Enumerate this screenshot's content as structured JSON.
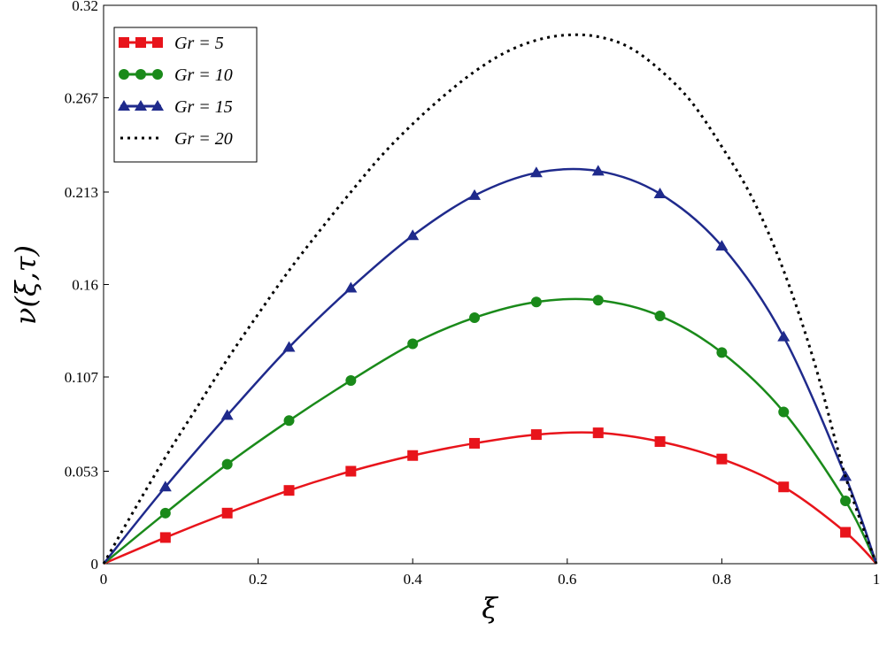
{
  "chart_data": {
    "type": "line",
    "xlabel": "ξ",
    "ylabel": "ν(ξ,τ)",
    "xlim": [
      0,
      1
    ],
    "ylim": [
      0,
      0.32
    ],
    "x_ticks": [
      "0",
      "0.2",
      "0.4",
      "0.6",
      "0.8",
      "1"
    ],
    "x_tick_values": [
      0,
      0.2,
      0.4,
      0.6,
      0.8,
      1
    ],
    "y_ticks": [
      "0",
      "0.053",
      "0.107",
      "0.16",
      "0.213",
      "0.267",
      "0.32"
    ],
    "y_tick_values": [
      0,
      0.053,
      0.107,
      0.16,
      0.213,
      0.267,
      0.32
    ],
    "legend_position": "top-left",
    "grid": false,
    "x": [
      0,
      0.08,
      0.16,
      0.24,
      0.32,
      0.4,
      0.48,
      0.56,
      0.64,
      0.72,
      0.8,
      0.88,
      0.96,
      1.0
    ],
    "series": [
      {
        "name": "Gr = 5",
        "label": "Gr = 5",
        "color": "#e8141b",
        "marker": "square",
        "dash": false,
        "values": [
          0,
          0.015,
          0.029,
          0.042,
          0.053,
          0.062,
          0.069,
          0.074,
          0.075,
          0.07,
          0.06,
          0.044,
          0.018,
          0
        ]
      },
      {
        "name": "Gr = 10",
        "label": "Gr = 10",
        "color": "#1a8a1a",
        "marker": "circle",
        "dash": false,
        "values": [
          0,
          0.029,
          0.057,
          0.082,
          0.105,
          0.126,
          0.141,
          0.15,
          0.151,
          0.142,
          0.121,
          0.087,
          0.036,
          0
        ]
      },
      {
        "name": "Gr = 15",
        "label": "Gr = 15",
        "color": "#1f2a8c",
        "marker": "triangle",
        "dash": false,
        "values": [
          0,
          0.044,
          0.085,
          0.124,
          0.158,
          0.188,
          0.211,
          0.224,
          0.225,
          0.212,
          0.182,
          0.13,
          0.05,
          0
        ]
      },
      {
        "name": "Gr = 20",
        "label": "Gr = 20",
        "color": "#000000",
        "marker": "none",
        "dash": true,
        "x": [
          0,
          0.04,
          0.08,
          0.12,
          0.16,
          0.2,
          0.24,
          0.28,
          0.32,
          0.36,
          0.4,
          0.44,
          0.48,
          0.52,
          0.56,
          0.6,
          0.64,
          0.68,
          0.72,
          0.76,
          0.8,
          0.84,
          0.88,
          0.92,
          0.96,
          1.0
        ],
        "values": [
          0,
          0.031,
          0.061,
          0.089,
          0.117,
          0.143,
          0.168,
          0.191,
          0.213,
          0.234,
          0.252,
          0.268,
          0.282,
          0.293,
          0.3,
          0.303,
          0.302,
          0.296,
          0.283,
          0.265,
          0.239,
          0.209,
          0.168,
          0.115,
          0.05,
          0
        ]
      }
    ]
  }
}
